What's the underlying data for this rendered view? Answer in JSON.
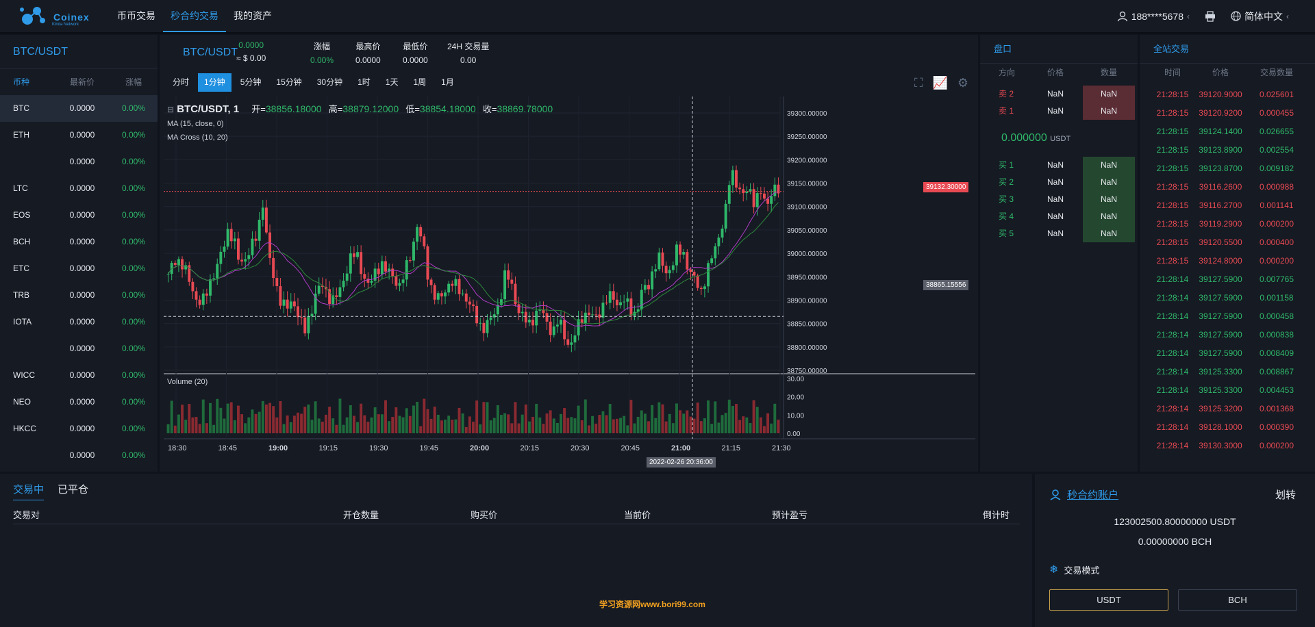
{
  "header": {
    "logo_text": "Coinex",
    "logo_sub": "Kinda Network",
    "nav": [
      "币币交易",
      "秒合约交易",
      "我的资产"
    ],
    "nav_active": 1,
    "user": "188****5678",
    "language": "简体中文"
  },
  "market_list": {
    "title": "BTC/USDT",
    "headers": [
      "币种",
      "最新价",
      "涨幅"
    ],
    "rows": [
      {
        "coin": "BTC",
        "price": "0.0000",
        "change": "0.00%"
      },
      {
        "coin": "ETH",
        "price": "0.0000",
        "change": "0.00%"
      },
      {
        "coin": "",
        "price": "0.0000",
        "change": "0.00%"
      },
      {
        "coin": "LTC",
        "price": "0.0000",
        "change": "0.00%"
      },
      {
        "coin": "EOS",
        "price": "0.0000",
        "change": "0.00%"
      },
      {
        "coin": "BCH",
        "price": "0.0000",
        "change": "0.00%"
      },
      {
        "coin": "ETC",
        "price": "0.0000",
        "change": "0.00%"
      },
      {
        "coin": "TRB",
        "price": "0.0000",
        "change": "0.00%"
      },
      {
        "coin": "IOTA",
        "price": "0.0000",
        "change": "0.00%"
      },
      {
        "coin": "",
        "price": "0.0000",
        "change": "0.00%"
      },
      {
        "coin": "WICC",
        "price": "0.0000",
        "change": "0.00%"
      },
      {
        "coin": "NEO",
        "price": "0.0000",
        "change": "0.00%"
      },
      {
        "coin": "HKCC",
        "price": "0.0000",
        "change": "0.00%"
      },
      {
        "coin": "",
        "price": "0.0000",
        "change": "0.00%"
      }
    ]
  },
  "ticker": {
    "pair": "BTC/USDT",
    "last": "0.0000",
    "last_usd": "≈ $ 0.00",
    "change_label": "涨幅",
    "change": "0.00%",
    "high_label": "最高价",
    "high": "0.0000",
    "low_label": "最低价",
    "low": "0.0000",
    "vol_label": "24H 交易量",
    "vol": "0.00"
  },
  "periods": [
    "分时",
    "1分钟",
    "5分钟",
    "15分钟",
    "30分钟",
    "1时",
    "1天",
    "1周",
    "1月"
  ],
  "period_active": 1,
  "chart_legend": {
    "symbol": "BTC/USDT, 1",
    "open_label": "开=",
    "open": "38856.18000",
    "high_label": "高=",
    "high": "38879.12000",
    "low_label": "低=",
    "low": "38854.18000",
    "close_label": "收=",
    "close": "38869.78000",
    "ma": "MA (15, close, 0)",
    "ma_cross": "MA Cross (10, 20)",
    "volume": "Volume (20)",
    "last_price_tag": "39132.30000",
    "cross_price_tag": "38865.15556",
    "cross_time_tag": "2022-02-26 20:36:00"
  },
  "chart_data": {
    "type": "candlestick",
    "price_ticks": [
      "39300.00000",
      "39250.00000",
      "39200.00000",
      "39150.00000",
      "39100.00000",
      "39050.00000",
      "39000.00000",
      "38950.00000",
      "38900.00000",
      "38850.00000",
      "38800.00000",
      "38750.00000"
    ],
    "price_range": [
      38750,
      39300
    ],
    "volume_ticks": [
      "30.00",
      "20.00",
      "10.00",
      "0.00"
    ],
    "volume_range": [
      0,
      30
    ],
    "time_ticks": [
      "18:30",
      "18:45",
      "19:00",
      "19:15",
      "19:30",
      "19:45",
      "20:00",
      "20:15",
      "20:30",
      "20:45",
      "21:00",
      "21:15",
      "21:30"
    ],
    "time_ticks_bold": [
      "19:00",
      "20:00",
      "21:00"
    ],
    "last_price": 39132.3,
    "close_series": [
      38950,
      38990,
      38980,
      38960,
      38930,
      38890,
      38900,
      38940,
      38960,
      39000,
      39050,
      39030,
      38980,
      38990,
      39010,
      39040,
      39110,
      38990,
      38940,
      38900,
      38880,
      38900,
      38870,
      38830,
      38870,
      38920,
      38930,
      38910,
      38900,
      38920,
      38960,
      39000,
      38990,
      38950,
      38930,
      38960,
      38980,
      38960,
      38950,
      38930,
      38960,
      39000,
      39060,
      39020,
      38940,
      38910,
      38900,
      38930,
      38940,
      38920,
      38910,
      38890,
      38860,
      38840,
      38850,
      38870,
      38900,
      38960,
      38930,
      38880,
      38860,
      38850,
      38870,
      38880,
      38850,
      38830,
      38860,
      38820,
      38800,
      38840,
      38870,
      38870,
      38860,
      38880,
      38900,
      38910,
      38890,
      38900,
      38880,
      38870,
      38920,
      38930,
      38970,
      38990,
      38960,
      38970,
      39010,
      39000,
      38960,
      38940,
      38920,
      38960,
      39000,
      39040,
      39080,
      39180,
      39150,
      39120,
      39140,
      39110,
      39130,
      39100,
      39140,
      39132
    ]
  },
  "order_book": {
    "title": "盘口",
    "headers": [
      "方向",
      "价格",
      "数量"
    ],
    "sells": [
      {
        "side": "卖 2",
        "price": "NaN",
        "qty": "NaN"
      },
      {
        "side": "卖 1",
        "price": "NaN",
        "qty": "NaN"
      }
    ],
    "mid_price": "0.000000",
    "mid_unit": "USDT",
    "buys": [
      {
        "side": "买 1",
        "price": "NaN",
        "qty": "NaN"
      },
      {
        "side": "买 2",
        "price": "NaN",
        "qty": "NaN"
      },
      {
        "side": "买 3",
        "price": "NaN",
        "qty": "NaN"
      },
      {
        "side": "买 4",
        "price": "NaN",
        "qty": "NaN"
      },
      {
        "side": "买 5",
        "price": "NaN",
        "qty": "NaN"
      }
    ]
  },
  "trades": {
    "title": "全站交易",
    "headers": [
      "时间",
      "价格",
      "交易数量"
    ],
    "rows": [
      {
        "time": "21:28:15",
        "price": "39120.9000",
        "qty": "0.025601",
        "side": "sell"
      },
      {
        "time": "21:28:15",
        "price": "39120.9200",
        "qty": "0.000455",
        "side": "sell"
      },
      {
        "time": "21:28:15",
        "price": "39124.1400",
        "qty": "0.026655",
        "side": "buy"
      },
      {
        "time": "21:28:15",
        "price": "39123.8900",
        "qty": "0.002554",
        "side": "buy"
      },
      {
        "time": "21:28:15",
        "price": "39123.8700",
        "qty": "0.009182",
        "side": "buy"
      },
      {
        "time": "21:28:15",
        "price": "39116.2600",
        "qty": "0.000988",
        "side": "sell"
      },
      {
        "time": "21:28:15",
        "price": "39116.2700",
        "qty": "0.001141",
        "side": "sell"
      },
      {
        "time": "21:28:15",
        "price": "39119.2900",
        "qty": "0.000200",
        "side": "sell"
      },
      {
        "time": "21:28:15",
        "price": "39120.5500",
        "qty": "0.000400",
        "side": "sell"
      },
      {
        "time": "21:28:15",
        "price": "39124.8000",
        "qty": "0.000200",
        "side": "sell"
      },
      {
        "time": "21:28:14",
        "price": "39127.5900",
        "qty": "0.007765",
        "side": "buy"
      },
      {
        "time": "21:28:14",
        "price": "39127.5900",
        "qty": "0.001158",
        "side": "buy"
      },
      {
        "time": "21:28:14",
        "price": "39127.5900",
        "qty": "0.000458",
        "side": "buy"
      },
      {
        "time": "21:28:14",
        "price": "39127.5900",
        "qty": "0.000838",
        "side": "buy"
      },
      {
        "time": "21:28:14",
        "price": "39127.5900",
        "qty": "0.008409",
        "side": "buy"
      },
      {
        "time": "21:28:14",
        "price": "39125.3300",
        "qty": "0.008867",
        "side": "buy"
      },
      {
        "time": "21:28:14",
        "price": "39125.3300",
        "qty": "0.004453",
        "side": "buy"
      },
      {
        "time": "21:28:14",
        "price": "39125.3200",
        "qty": "0.001368",
        "side": "sell"
      },
      {
        "time": "21:28:14",
        "price": "39128.1000",
        "qty": "0.000390",
        "side": "sell"
      },
      {
        "time": "21:28:14",
        "price": "39130.3000",
        "qty": "0.000200",
        "side": "sell"
      }
    ]
  },
  "orders": {
    "tabs": [
      "交易中",
      "已平仓"
    ],
    "tab_active": 0,
    "headers": [
      "交易对",
      "开仓数量",
      "购买价",
      "当前价",
      "预计盈亏",
      "倒计时"
    ],
    "watermark": "学习资源网www.bori99.com"
  },
  "account": {
    "title": "秒合约账户",
    "transfer": "划转",
    "balance_usdt": "123002500.80000000 USDT",
    "balance_bch": "0.00000000 BCH",
    "mode_label": "交易模式",
    "modes": [
      "USDT",
      "BCH"
    ],
    "mode_active": 0
  },
  "colors": {
    "accent": "#2f9be9",
    "up": "#2fb86a",
    "down": "#e84a53",
    "bg": "#161a23"
  }
}
